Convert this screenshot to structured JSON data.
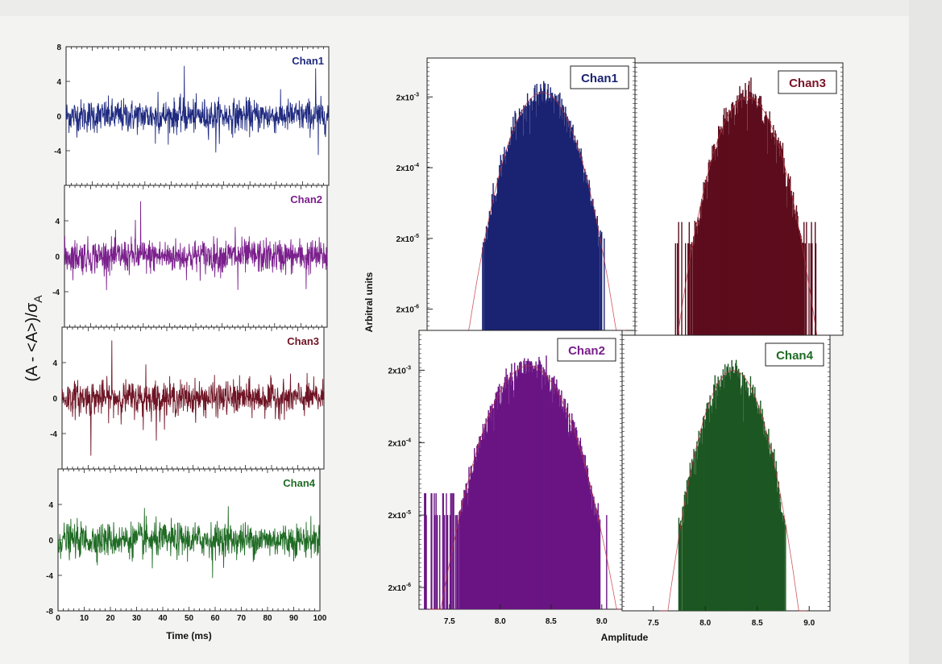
{
  "chart_data": [
    {
      "type": "line",
      "panel": "left",
      "xlabel": "Time (ms)",
      "ylabel": "(A - <A>)/σ",
      "ylabel_sub": "A",
      "xlim": [
        0,
        100
      ],
      "x_ticks": [
        "0",
        "10",
        "20",
        "30",
        "40",
        "50",
        "60",
        "70",
        "80",
        "90",
        "100"
      ],
      "series": [
        {
          "name": "Chan1",
          "color": "#1f2a80",
          "ylim": [
            -8,
            8
          ],
          "y_ticks": [
            "8",
            "4",
            "0",
            "-4"
          ],
          "spikes": [
            [
              45,
              5.8
            ],
            [
              95,
              5.5
            ],
            [
              96,
              -4.5
            ],
            [
              57,
              -4.2
            ],
            [
              35,
              2.8
            ],
            [
              34,
              -3.2
            ]
          ]
        },
        {
          "name": "Chan2",
          "color": "#7a1f8c",
          "ylim": [
            -8,
            8
          ],
          "y_ticks": [
            "4",
            "0",
            "-4"
          ],
          "spikes": [
            [
              29,
              6.2
            ],
            [
              27,
              4.1
            ],
            [
              66,
              -3.8
            ],
            [
              92,
              -3.7
            ],
            [
              65,
              3.3
            ]
          ]
        },
        {
          "name": "Chan3",
          "color": "#6e1424",
          "ylim": [
            -8,
            8
          ],
          "y_ticks": [
            "4",
            "0",
            "-4"
          ],
          "spikes": [
            [
              19,
              6.5
            ],
            [
              11,
              -6.5
            ],
            [
              32,
              3.8
            ],
            [
              31,
              -3.6
            ],
            [
              36,
              -4.8
            ]
          ]
        },
        {
          "name": "Chan4",
          "color": "#1f6b24",
          "ylim": [
            -8,
            8
          ],
          "y_ticks": [
            "4",
            "0",
            "-4",
            "-8"
          ],
          "spikes": [
            [
              33,
              3.6
            ],
            [
              65,
              3.8
            ],
            [
              59,
              -4.3
            ],
            [
              36,
              -3.2
            ]
          ]
        }
      ]
    },
    {
      "type": "histogram",
      "panel": "right",
      "xlabel": "Amplitude",
      "ylabel": "Arbitral units",
      "yscale": "log",
      "x_ticks": [
        "7.5",
        "8.0",
        "8.5",
        "9.0"
      ],
      "y_ticks_base": "2x10",
      "y_ticks_exp": [
        "-3",
        "-4",
        "-5",
        "-6"
      ],
      "subplots": [
        {
          "name": "Chan1",
          "color": "#1b2372",
          "legend_color": "#1b2372",
          "mean": 8.31,
          "sigma": 0.18,
          "xlim": [
            7.2,
            9.2
          ],
          "tail_range": [
            7.82,
            8.92
          ]
        },
        {
          "name": "Chan3",
          "color": "#5c0d1c",
          "legend_color": "#7a1426",
          "mean": 8.28,
          "sigma": 0.17,
          "xlim": [
            7.2,
            9.2
          ],
          "tail_range": [
            7.55,
            8.95
          ]
        },
        {
          "name": "Chan2",
          "color": "#6a1584",
          "legend_color": "#7a1f8c",
          "mean": 8.28,
          "sigma": 0.22,
          "xlim": [
            7.2,
            9.2
          ],
          "tail_range": [
            7.25,
            9.05
          ]
        },
        {
          "name": "Chan4",
          "color": "#1d5722",
          "legend_color": "#1f6b24",
          "mean": 8.27,
          "sigma": 0.16,
          "xlim": [
            7.2,
            9.2
          ],
          "tail_range": [
            7.7,
            8.72
          ]
        }
      ]
    }
  ]
}
